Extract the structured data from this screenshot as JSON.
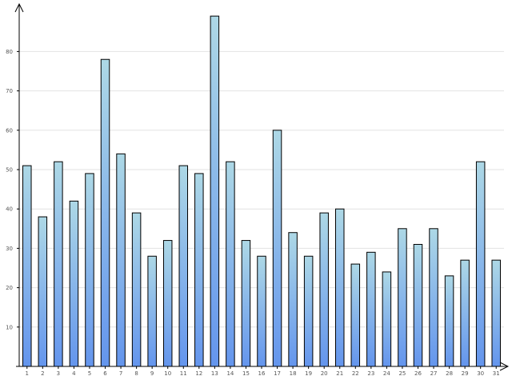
{
  "chart_data": {
    "type": "bar",
    "title": "",
    "xlabel": "",
    "ylabel": "",
    "categories": [
      "1",
      "2",
      "3",
      "4",
      "5",
      "6",
      "7",
      "8",
      "9",
      "10",
      "11",
      "12",
      "13",
      "14",
      "15",
      "16",
      "17",
      "18",
      "19",
      "20",
      "21",
      "22",
      "23",
      "24",
      "25",
      "26",
      "27",
      "28",
      "29",
      "30",
      "31"
    ],
    "series": [
      {
        "values": [
          51,
          38,
          52,
          42,
          49,
          78,
          54,
          39,
          28,
          32,
          51,
          49,
          89,
          52,
          32,
          28,
          60,
          34,
          28,
          39,
          40,
          26,
          29,
          24,
          35,
          31,
          35,
          23,
          27,
          52,
          27
        ]
      }
    ],
    "y_ticks": [
      "10",
      "20",
      "30",
      "40",
      "50",
      "60",
      "70",
      "80"
    ],
    "ylim": [
      0,
      92
    ],
    "grid": true,
    "legend": "none",
    "colors": {
      "bar_top": "#add8e6",
      "bar_bottom": "#6495ed",
      "bar_stroke": "#000000",
      "grid": "#e2e2e2",
      "axis": "#000000"
    }
  }
}
